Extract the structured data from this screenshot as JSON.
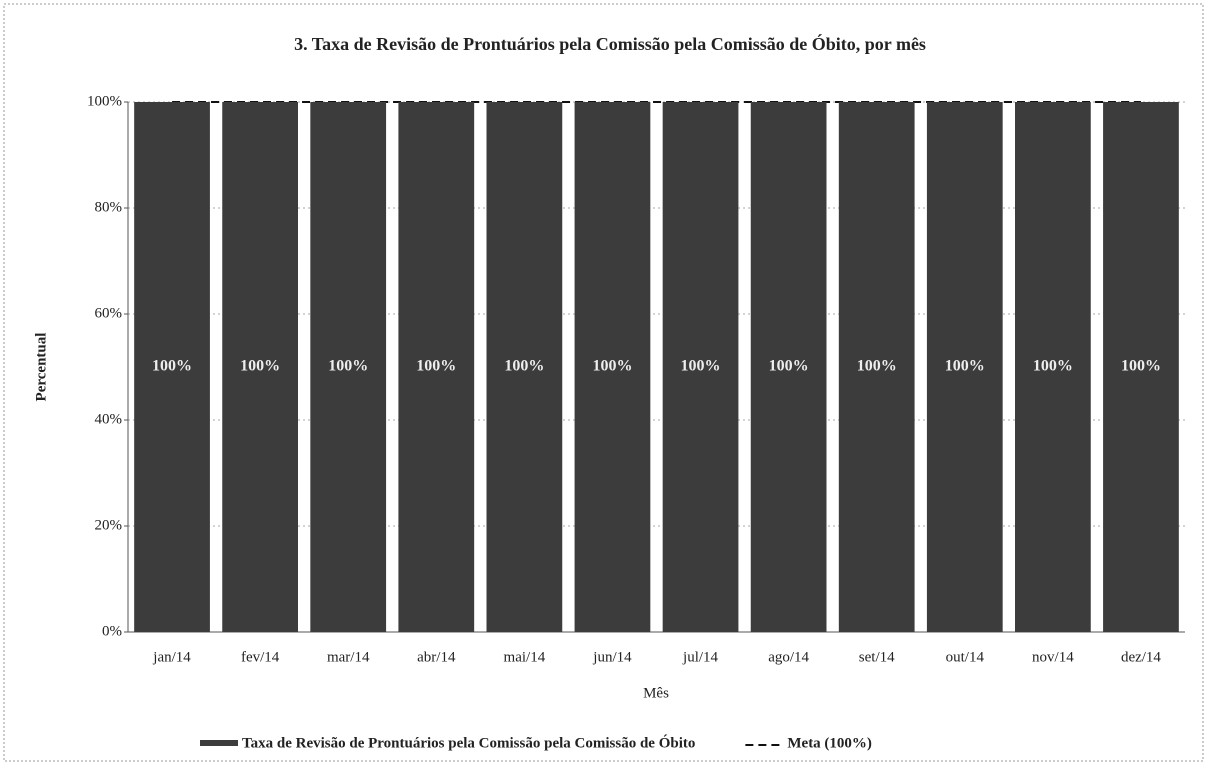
{
  "chart_data": {
    "type": "bar",
    "title": "3. Taxa de Revisão de Prontuários pela Comissão pela Comissão de Óbito, por mês",
    "x_label": "Mês",
    "y_label": "Percentual",
    "categories": [
      "jan/14",
      "fev/14",
      "mar/14",
      "abr/14",
      "mai/14",
      "jun/14",
      "jul/14",
      "ago/14",
      "set/14",
      "out/14",
      "nov/14",
      "dez/14"
    ],
    "series": [
      {
        "name": "Taxa de Revisão de Prontuários pela Comissão pela Comissão de Óbito",
        "type": "bar",
        "color": "#3c3c3c",
        "values": [
          100,
          100,
          100,
          100,
          100,
          100,
          100,
          100,
          100,
          100,
          100,
          100
        ],
        "value_labels": [
          "100%",
          "100%",
          "100%",
          "100%",
          "100%",
          "100%",
          "100%",
          "100%",
          "100%",
          "100%",
          "100%",
          "100%"
        ]
      },
      {
        "name": "Meta (100%)",
        "type": "line",
        "color": "#111111",
        "values": [
          100,
          100,
          100,
          100,
          100,
          100,
          100,
          100,
          100,
          100,
          100,
          100
        ]
      }
    ],
    "ylim": [
      0,
      100
    ],
    "yticks": [
      {
        "value": 0,
        "label": "0%"
      },
      {
        "value": 20,
        "label": "20%"
      },
      {
        "value": 40,
        "label": "40%"
      },
      {
        "value": 60,
        "label": "60%"
      },
      {
        "value": 80,
        "label": "80%"
      },
      {
        "value": 100,
        "label": "100%"
      }
    ],
    "grid": true
  }
}
